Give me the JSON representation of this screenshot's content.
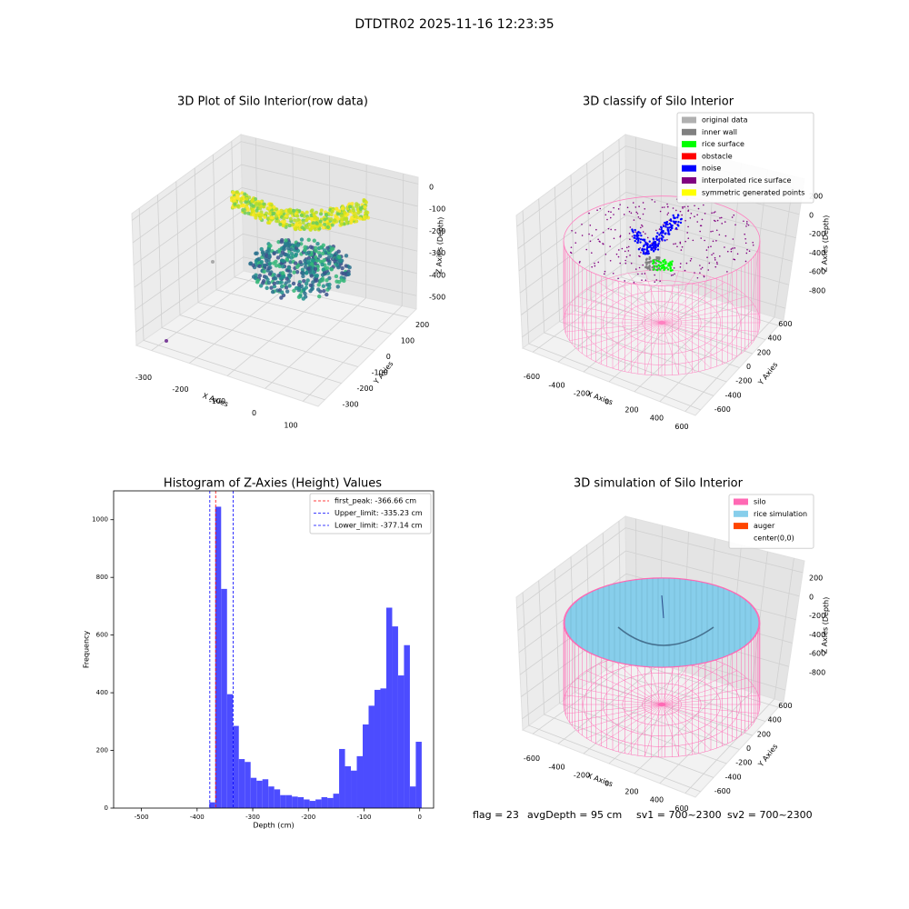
{
  "title": "DTDTR02 2025-11-16 12:23:35",
  "chart_data": [
    {
      "type": "scatter3d",
      "title": "3D Plot of Silo Interior(row data)",
      "xlabel": "X Axies",
      "ylabel": "Y Axies",
      "zlabel": "Z Axies (Depth)",
      "xlim": [
        -340,
        140
      ],
      "xticks": [
        -300,
        -200,
        -100,
        0,
        100
      ],
      "ylim": [
        -340,
        250
      ],
      "yticks": [
        -300,
        -200,
        -100,
        0,
        100,
        200
      ],
      "zlim": [
        -560,
        30
      ],
      "zticks": [
        0,
        -100,
        -200,
        -300,
        -400,
        -500
      ]
    },
    {
      "type": "scatter3d",
      "title": "3D classify of Silo Interior",
      "xlabel": "X Axies",
      "ylabel": "Y Axies",
      "zlabel": "Z Axies (Depth)",
      "xlim": [
        -680,
        680
      ],
      "xticks": [
        -600,
        -400,
        -200,
        0,
        200,
        400,
        600
      ],
      "ylim": [
        -680,
        680
      ],
      "yticks": [
        -600,
        -400,
        -200,
        0,
        200,
        400,
        600
      ],
      "zlim": [
        -900,
        300
      ],
      "zticks": [
        200,
        0,
        -200,
        -400,
        -600,
        -800
      ],
      "legend_loc": "upper right",
      "legend": [
        {
          "name": "original data",
          "color": "#b0b0b0"
        },
        {
          "name": "inner wall",
          "color": "#808080"
        },
        {
          "name": "rice surface",
          "color": "#00ff00"
        },
        {
          "name": "obstacle",
          "color": "#ff0000"
        },
        {
          "name": "noise",
          "color": "#0000ff"
        },
        {
          "name": "interpolated rice surface",
          "color": "#800080"
        },
        {
          "name": "symmetric generated points",
          "color": "#ffff00"
        }
      ]
    },
    {
      "type": "histogram",
      "title": "Histogram of Z-Axies (Height) Values",
      "xlabel": "Depth (cm)",
      "ylabel": "Frequency",
      "color": "#4c4cff",
      "xlim": [
        -550,
        25
      ],
      "xticks": [
        -500,
        -400,
        -300,
        -200,
        -100,
        0
      ],
      "ylim": [
        0,
        1100
      ],
      "yticks": [
        0,
        200,
        400,
        600,
        800,
        1000
      ],
      "bins": [
        -378,
        -367.4,
        -356.8,
        -346.2,
        -335.6,
        -325,
        -314.4,
        -303.8,
        -293.2,
        -282.6,
        -272,
        -261.4,
        -250.8,
        -240.2,
        -229.6,
        -219,
        -208.4,
        -197.8,
        -187.2,
        -176.6,
        -166,
        -155.4,
        -144.8,
        -134.2,
        -123.6,
        -113,
        -102.4,
        -91.8,
        -81.2,
        -70.6,
        -60,
        -49.4,
        -38.8,
        -28.2,
        -17.6,
        -7,
        3.6
      ],
      "values": [
        20,
        1045,
        760,
        395,
        285,
        170,
        160,
        105,
        95,
        100,
        75,
        65,
        45,
        45,
        40,
        38,
        30,
        25,
        30,
        38,
        35,
        50,
        205,
        145,
        130,
        180,
        290,
        355,
        410,
        415,
        695,
        630,
        460,
        565,
        75,
        230
      ],
      "legend_loc": "upper right",
      "vlines": [
        {
          "label": "first_peak: -366.66 cm",
          "value": -366.66,
          "color": "#ff0000"
        },
        {
          "label": "Upper_limit: -335.23 cm",
          "value": -335.23,
          "color": "#0000ff"
        },
        {
          "label": "Lower_limit: -377.14 cm",
          "value": -377.14,
          "color": "#0000ff"
        }
      ]
    },
    {
      "type": "surface3d",
      "title": "3D simulation of Silo Interior",
      "xlabel": "X Axies",
      "ylabel": "Y Axies",
      "zlabel": "Z Axies (Depth)",
      "xlim": [
        -680,
        680
      ],
      "xticks": [
        -600,
        -400,
        -200,
        0,
        200,
        400,
        600
      ],
      "ylim": [
        -680,
        680
      ],
      "yticks": [
        -600,
        -400,
        -200,
        0,
        200,
        400,
        600
      ],
      "zlim": [
        -900,
        300
      ],
      "zticks": [
        200,
        0,
        -200,
        -400,
        -600,
        -800
      ],
      "legend_loc": "upper right",
      "legend": [
        {
          "name": "silo",
          "color": "#ff69b4"
        },
        {
          "name": "rice simulation",
          "color": "#87ceeb"
        },
        {
          "name": "auger",
          "color": "#ff4500"
        },
        {
          "name": "center(0,0)",
          "color": "#ffffff"
        }
      ]
    }
  ],
  "footer": [
    "flag = 23",
    "avgDepth = 95 cm",
    "sv1 = 700~2300",
    "sv2 = 700~2300"
  ]
}
